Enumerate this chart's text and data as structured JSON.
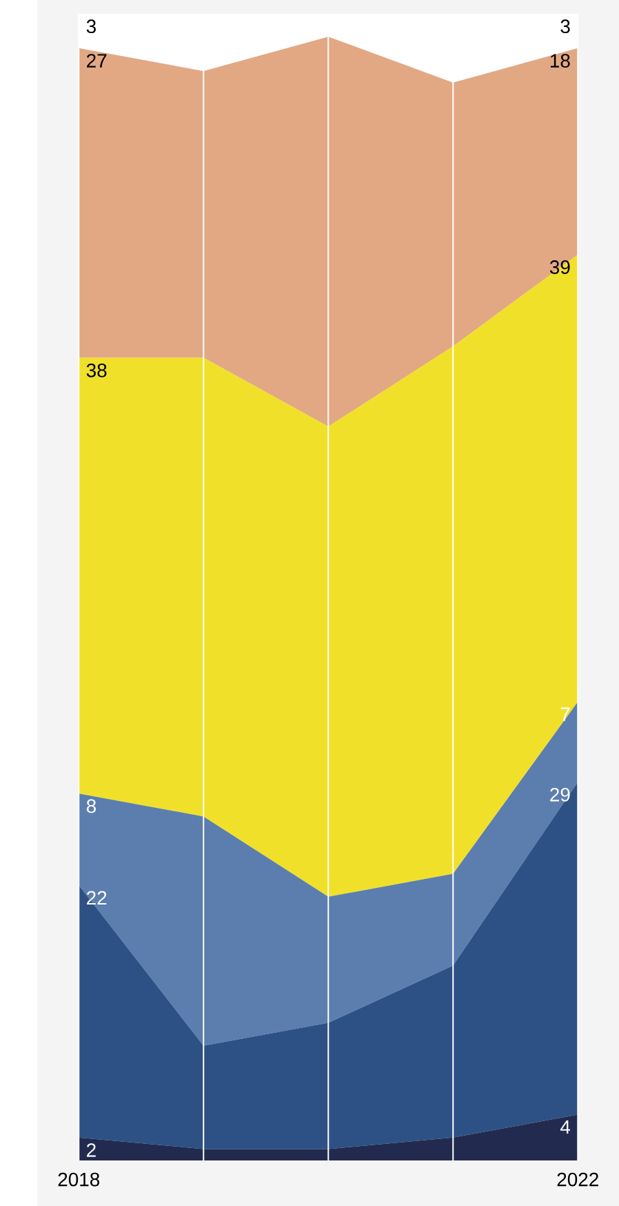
{
  "chart_data": {
    "type": "area",
    "stacked": true,
    "grid": "x",
    "categories": [
      "2018",
      null,
      null,
      null,
      "2022"
    ],
    "series": [
      {
        "color": "#222b4f",
        "values": [
          2,
          1,
          1,
          2,
          4
        ],
        "value_labels": [
          "2",
          null,
          null,
          null,
          "4"
        ]
      },
      {
        "color": "#2d5184",
        "values": [
          22,
          9,
          11,
          15,
          29
        ],
        "value_labels": [
          "22",
          null,
          null,
          null,
          "29"
        ]
      },
      {
        "color": "#5b7eae",
        "values": [
          8,
          20,
          11,
          8,
          7
        ],
        "value_labels": [
          "8",
          null,
          null,
          null,
          "7"
        ]
      },
      {
        "color": "#f0e02a",
        "values": [
          38,
          40,
          41,
          46,
          39
        ],
        "value_labels": [
          "38",
          null,
          null,
          null,
          "39"
        ]
      },
      {
        "color": "#e2a884",
        "values": [
          27,
          25,
          34,
          23,
          18
        ],
        "value_labels": [
          "27",
          null,
          null,
          null,
          "18"
        ]
      },
      {
        "color": "#ffffff",
        "values": [
          3,
          5,
          2,
          6,
          3
        ],
        "value_labels": [
          "3",
          null,
          null,
          null,
          "3"
        ]
      }
    ]
  }
}
